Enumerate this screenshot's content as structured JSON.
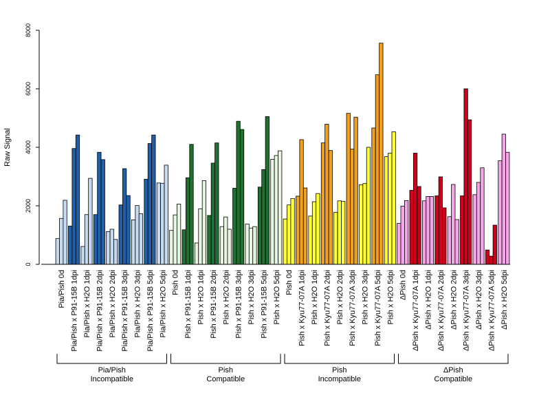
{
  "chart_data": {
    "type": "bar",
    "ylabel": "Raw Signal",
    "ylim": [
      0,
      8000
    ],
    "yticks": [
      0,
      2000,
      4000,
      6000,
      8000
    ],
    "grid": false,
    "categories": [
      "Pia/Pish 0d",
      "Pia/Pish x P91-15B 1dpi",
      "Pia/Pish x H2O 1dpi",
      "Pia/Pish x P91-15B 2dpi",
      "Pia/Pish x H2O 2dpi",
      "Pia/Pish x P91-15B 3dpi",
      "Pia/Pish x H2O 3dpi",
      "Pia/Pish x P91-15B 5dpi",
      "Pia/Pish x H2O 5dpi",
      "Pish 0d",
      "Pish x P91-15B 1dpi",
      "Pish x H2O 1dpi",
      "Pish x P91-15B 2dpi",
      "Pish x H2O 2dpi",
      "Pish x P91-15B 3dpi",
      "Pish x H2O 3dpi",
      "Pish x P91-15B 5dpi",
      "Pish x H2O 5dpi",
      "Pish 0d",
      "Pish x Kyu77-07A 1dpi",
      "Pish x H2O 1dpi",
      "Pish x Kyu77-07A 2dpi",
      "Pish x H2O 2dpi",
      "Pish x Kyu77-07A 3dpi",
      "Pish x H2O 3dpi",
      "Pish x Kyu77-07A 5dpi",
      "Pish x H2O 5dpi",
      "ΔPish 0d",
      "ΔPish x Kyu77-07A 1dpi",
      "ΔPish x H2O 1dpi",
      "ΔPish x Kyu77-07A 2dpi",
      "ΔPish x H2O 2dpi",
      "ΔPish x Kyu77-07A 3dpi",
      "ΔPish x H2O 3dpi",
      "ΔPish x Kyu77-07A 5dpi",
      "ΔPish x H2O 5dpi"
    ],
    "colors": [
      "#c6dbef",
      "#2060a8",
      "#c6dbef",
      "#2060a8",
      "#c6dbef",
      "#2060a8",
      "#c6dbef",
      "#2060a8",
      "#c6dbef",
      "#e5f5e0",
      "#207030",
      "#e5f5e0",
      "#207030",
      "#e5f5e0",
      "#207030",
      "#e5f5e0",
      "#207030",
      "#e5f5e0",
      "#ffff33",
      "#f0a020",
      "#ffff33",
      "#f0a020",
      "#ffff33",
      "#f0a020",
      "#ffff33",
      "#f0a020",
      "#ffff33",
      "#f4a6e8",
      "#d0001c",
      "#f4a6e8",
      "#d0001c",
      "#f4a6e8",
      "#d0001c",
      "#f4a6e8",
      "#d0001c",
      "#f4a6e8"
    ],
    "values": [
      [
        880,
        1570,
        2190
      ],
      [
        1310,
        3960,
        4420
      ],
      [
        610,
        1700,
        2940
      ],
      [
        1700,
        3830,
        3580
      ],
      [
        1120,
        1200,
        850
      ],
      [
        2030,
        3270,
        2350
      ],
      [
        1520,
        2010,
        1730
      ],
      [
        2910,
        4130,
        4420
      ],
      [
        2780,
        2770,
        3390
      ],
      [
        1160,
        1690,
        2060
      ],
      [
        1180,
        2960,
        4100
      ],
      [
        730,
        1900,
        2860
      ],
      [
        1670,
        3460,
        4150
      ],
      [
        1290,
        1620,
        1200
      ],
      [
        2600,
        4890,
        4610
      ],
      [
        1380,
        1240,
        1290
      ],
      [
        2640,
        3240,
        5050
      ],
      [
        3590,
        3720,
        3880
      ],
      [
        1550,
        2030,
        2250
      ],
      [
        2330,
        4260,
        2610
      ],
      [
        1650,
        2140,
        2420
      ],
      [
        4150,
        4790,
        3890
      ],
      [
        1780,
        2170,
        2150
      ],
      [
        5160,
        3940,
        5030
      ],
      [
        2720,
        2760,
        4000
      ],
      [
        4660,
        6480,
        7560
      ],
      [
        3680,
        3800,
        4530
      ],
      [
        1400,
        1990,
        2180
      ],
      [
        2530,
        3800,
        2660
      ],
      [
        2170,
        2320,
        2320
      ],
      [
        2340,
        2990,
        1930
      ],
      [
        1630,
        2730,
        1530
      ],
      [
        2340,
        6000,
        4940
      ],
      [
        2380,
        2800,
        3300
      ],
      [
        490,
        280,
        1340
      ],
      [
        3540,
        4450,
        3830
      ]
    ],
    "groups": [
      {
        "line1": "Pia/Pish",
        "line2": "Incompatible",
        "start": 0,
        "end": 8
      },
      {
        "line1": "Pish",
        "line2": "Compatible",
        "start": 9,
        "end": 17
      },
      {
        "line1": "Pish",
        "line2": "Incompatible",
        "start": 18,
        "end": 26
      },
      {
        "line1": "ΔPish",
        "line2": "Compatible",
        "start": 27,
        "end": 35
      }
    ]
  }
}
